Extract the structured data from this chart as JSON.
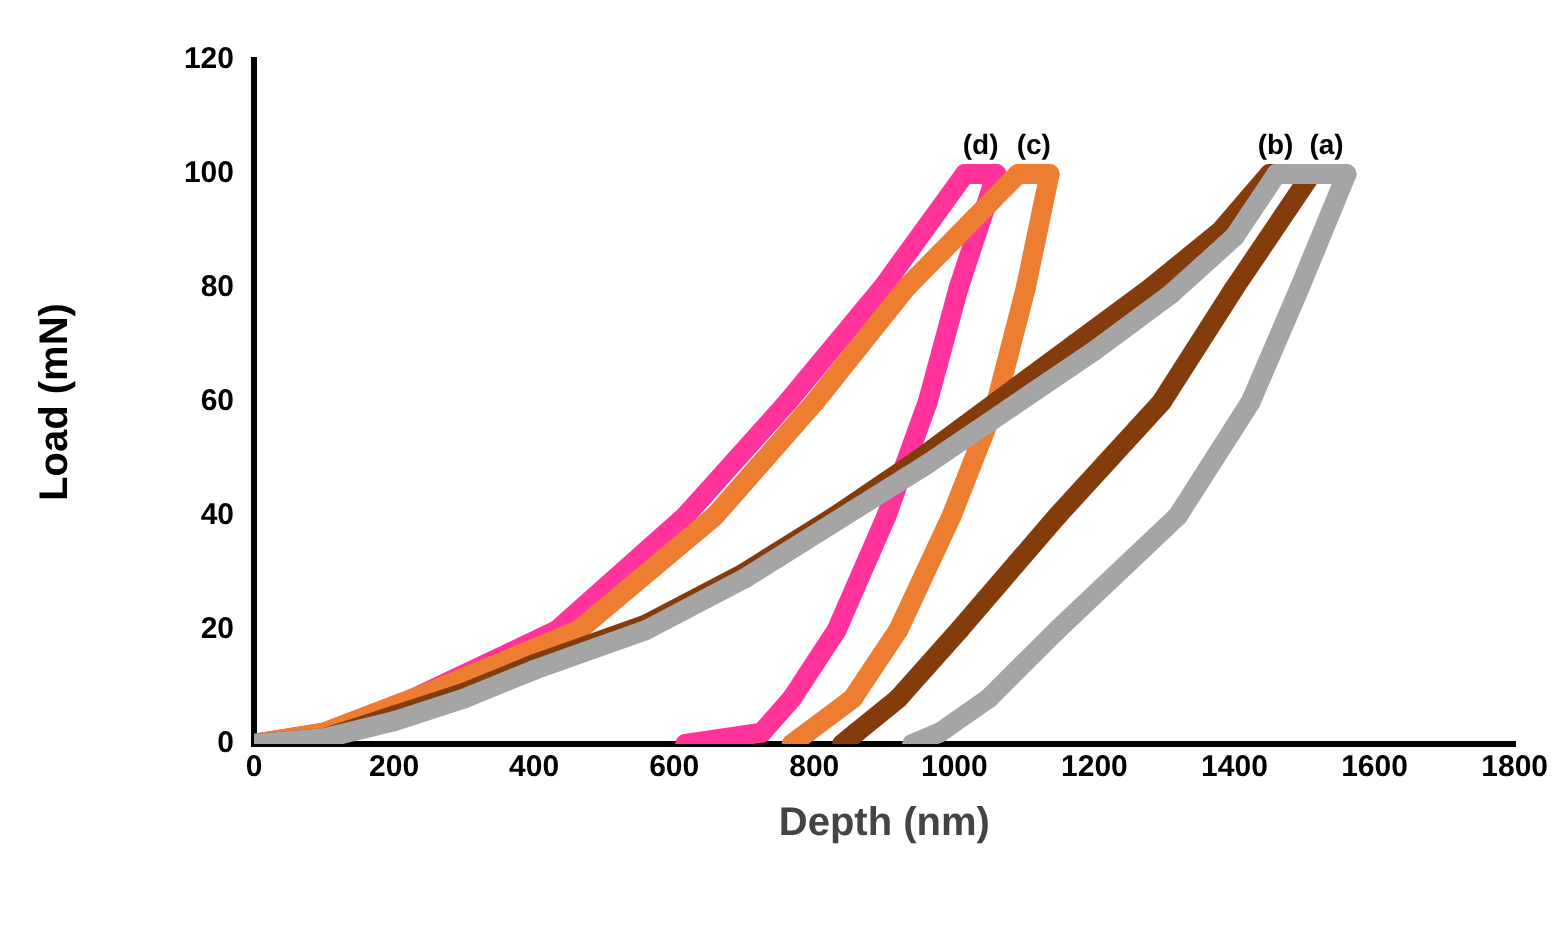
{
  "chart_data": {
    "type": "line",
    "xlabel": "Depth (nm)",
    "ylabel": "Load (mN)",
    "xlim": [
      0,
      1800
    ],
    "xticks": [
      0,
      200,
      400,
      600,
      800,
      1000,
      1200,
      1400,
      1600,
      1800
    ],
    "ylim": [
      0,
      120
    ],
    "yticks": [
      0,
      20,
      40,
      60,
      80,
      100,
      120
    ],
    "grid": false,
    "legend": false,
    "marker": "circle",
    "line_style": "solid",
    "series": [
      {
        "name": "(a)",
        "color": "#a5a5a5",
        "x": [
          0,
          100,
          200,
          300,
          400,
          560,
          700,
          830,
          960,
          1080,
          1200,
          1310,
          1400,
          1460,
          1560,
          1493,
          1423,
          1319,
          1147,
          1049,
          979,
          940
        ],
        "values": [
          0,
          1,
          4,
          8,
          13,
          20,
          29,
          39,
          49,
          59,
          69,
          79,
          89,
          100,
          100,
          80,
          60,
          40,
          20,
          8,
          2,
          0
        ]
      },
      {
        "name": "(b)",
        "color": "#843c0c",
        "x": [
          0,
          100,
          200,
          300,
          400,
          560,
          700,
          830,
          950,
          1060,
          1170,
          1280,
          1380,
          1450,
          1510,
          1400,
          1296,
          1147,
          1007,
          920,
          860,
          840
        ],
        "values": [
          0,
          1,
          5,
          9,
          14,
          21,
          30,
          40,
          50,
          60,
          70,
          80,
          90,
          100,
          100,
          80,
          60,
          40,
          20,
          8,
          2,
          0
        ]
      },
      {
        "name": "(c)",
        "color": "#ed7d31",
        "x": [
          0,
          100,
          228,
          464,
          658,
          801,
          931,
          1091,
          1136,
          1102,
          1060,
          996,
          920,
          855,
          768
        ],
        "values": [
          0,
          2,
          8,
          20,
          40,
          60,
          80,
          100,
          100,
          80,
          60,
          40,
          20,
          8,
          0
        ]
      },
      {
        "name": "(d)",
        "color": "#ff3399",
        "x": [
          0,
          100,
          228,
          433,
          616,
          762,
          897,
          1015,
          1060,
          1006,
          962,
          903,
          832,
          768,
          725,
          616
        ],
        "values": [
          0,
          2,
          8,
          20,
          40,
          60,
          80,
          100,
          100,
          80,
          60,
          40,
          20,
          8,
          2,
          0
        ]
      }
    ]
  }
}
